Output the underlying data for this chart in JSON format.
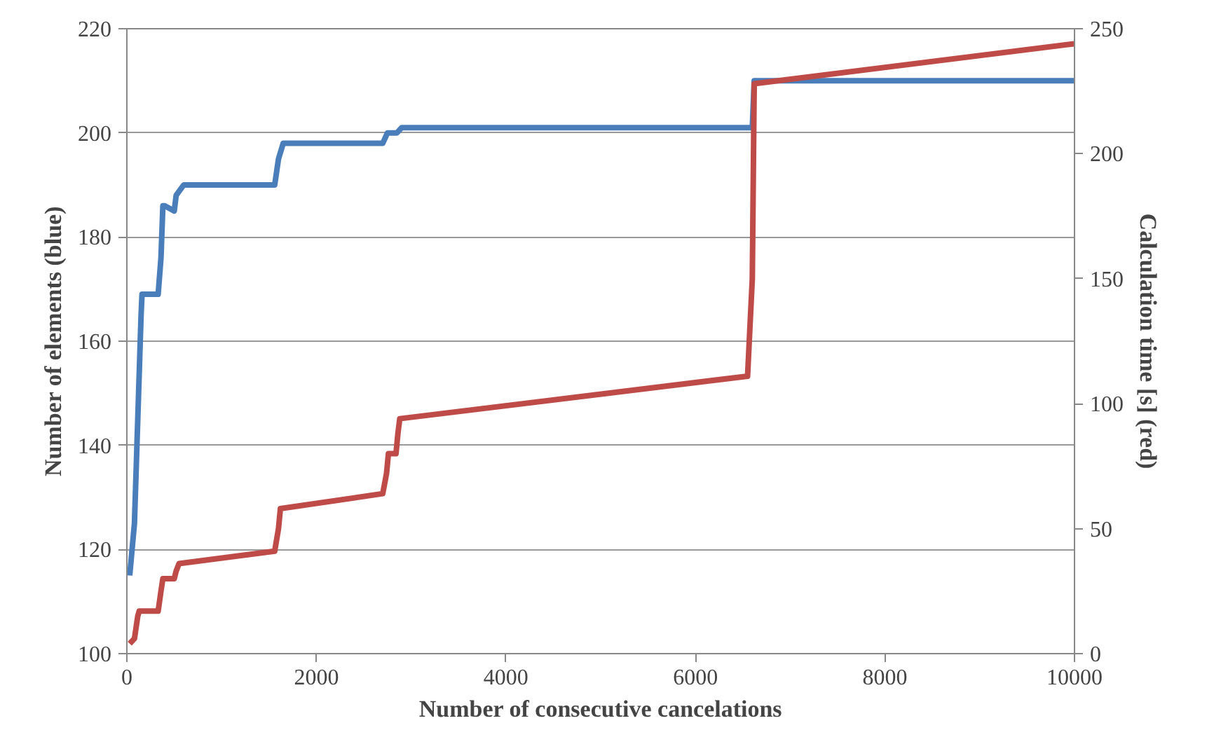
{
  "chart_data": {
    "type": "line",
    "xlabel": "Number of consecutive cancelations",
    "ylabel": "Number of elements (blue)",
    "y2label": "Calculation time [s] (red)",
    "xlim": [
      0,
      10000
    ],
    "xticks": [
      0,
      2000,
      4000,
      6000,
      8000,
      10000
    ],
    "ylim": [
      100,
      220
    ],
    "yticks": [
      100,
      120,
      140,
      160,
      180,
      200,
      220
    ],
    "y2lim": [
      0,
      250
    ],
    "y2ticks": [
      0,
      50,
      100,
      150,
      200,
      250
    ],
    "grid": "y",
    "series": [
      {
        "color": "#4a7ebb",
        "x": [
          30,
          80,
          150,
          160,
          330,
          360,
          380,
          400,
          500,
          520,
          600,
          1560,
          1600,
          1650,
          2700,
          2750,
          2800,
          2850,
          2900,
          6550,
          6600,
          6620,
          10000
        ],
        "values": [
          115,
          125,
          165,
          169,
          169,
          176,
          186,
          186,
          185,
          188,
          190,
          190,
          195,
          198,
          198,
          200,
          200,
          200,
          201,
          201,
          201,
          210,
          210
        ]
      },
      {
        "color": "#be4b48",
        "axis": "y2",
        "x": [
          30,
          80,
          115,
          130,
          330,
          360,
          380,
          500,
          520,
          550,
          1560,
          1600,
          1620,
          2700,
          2740,
          2760,
          2840,
          2860,
          2880,
          6550,
          6600,
          6620,
          10000
        ],
        "values": [
          4,
          6,
          15,
          17,
          17,
          25,
          30,
          30,
          33,
          36,
          41,
          50,
          58,
          64,
          72,
          80,
          80,
          88,
          94,
          111,
          150,
          228,
          244
        ]
      }
    ]
  }
}
